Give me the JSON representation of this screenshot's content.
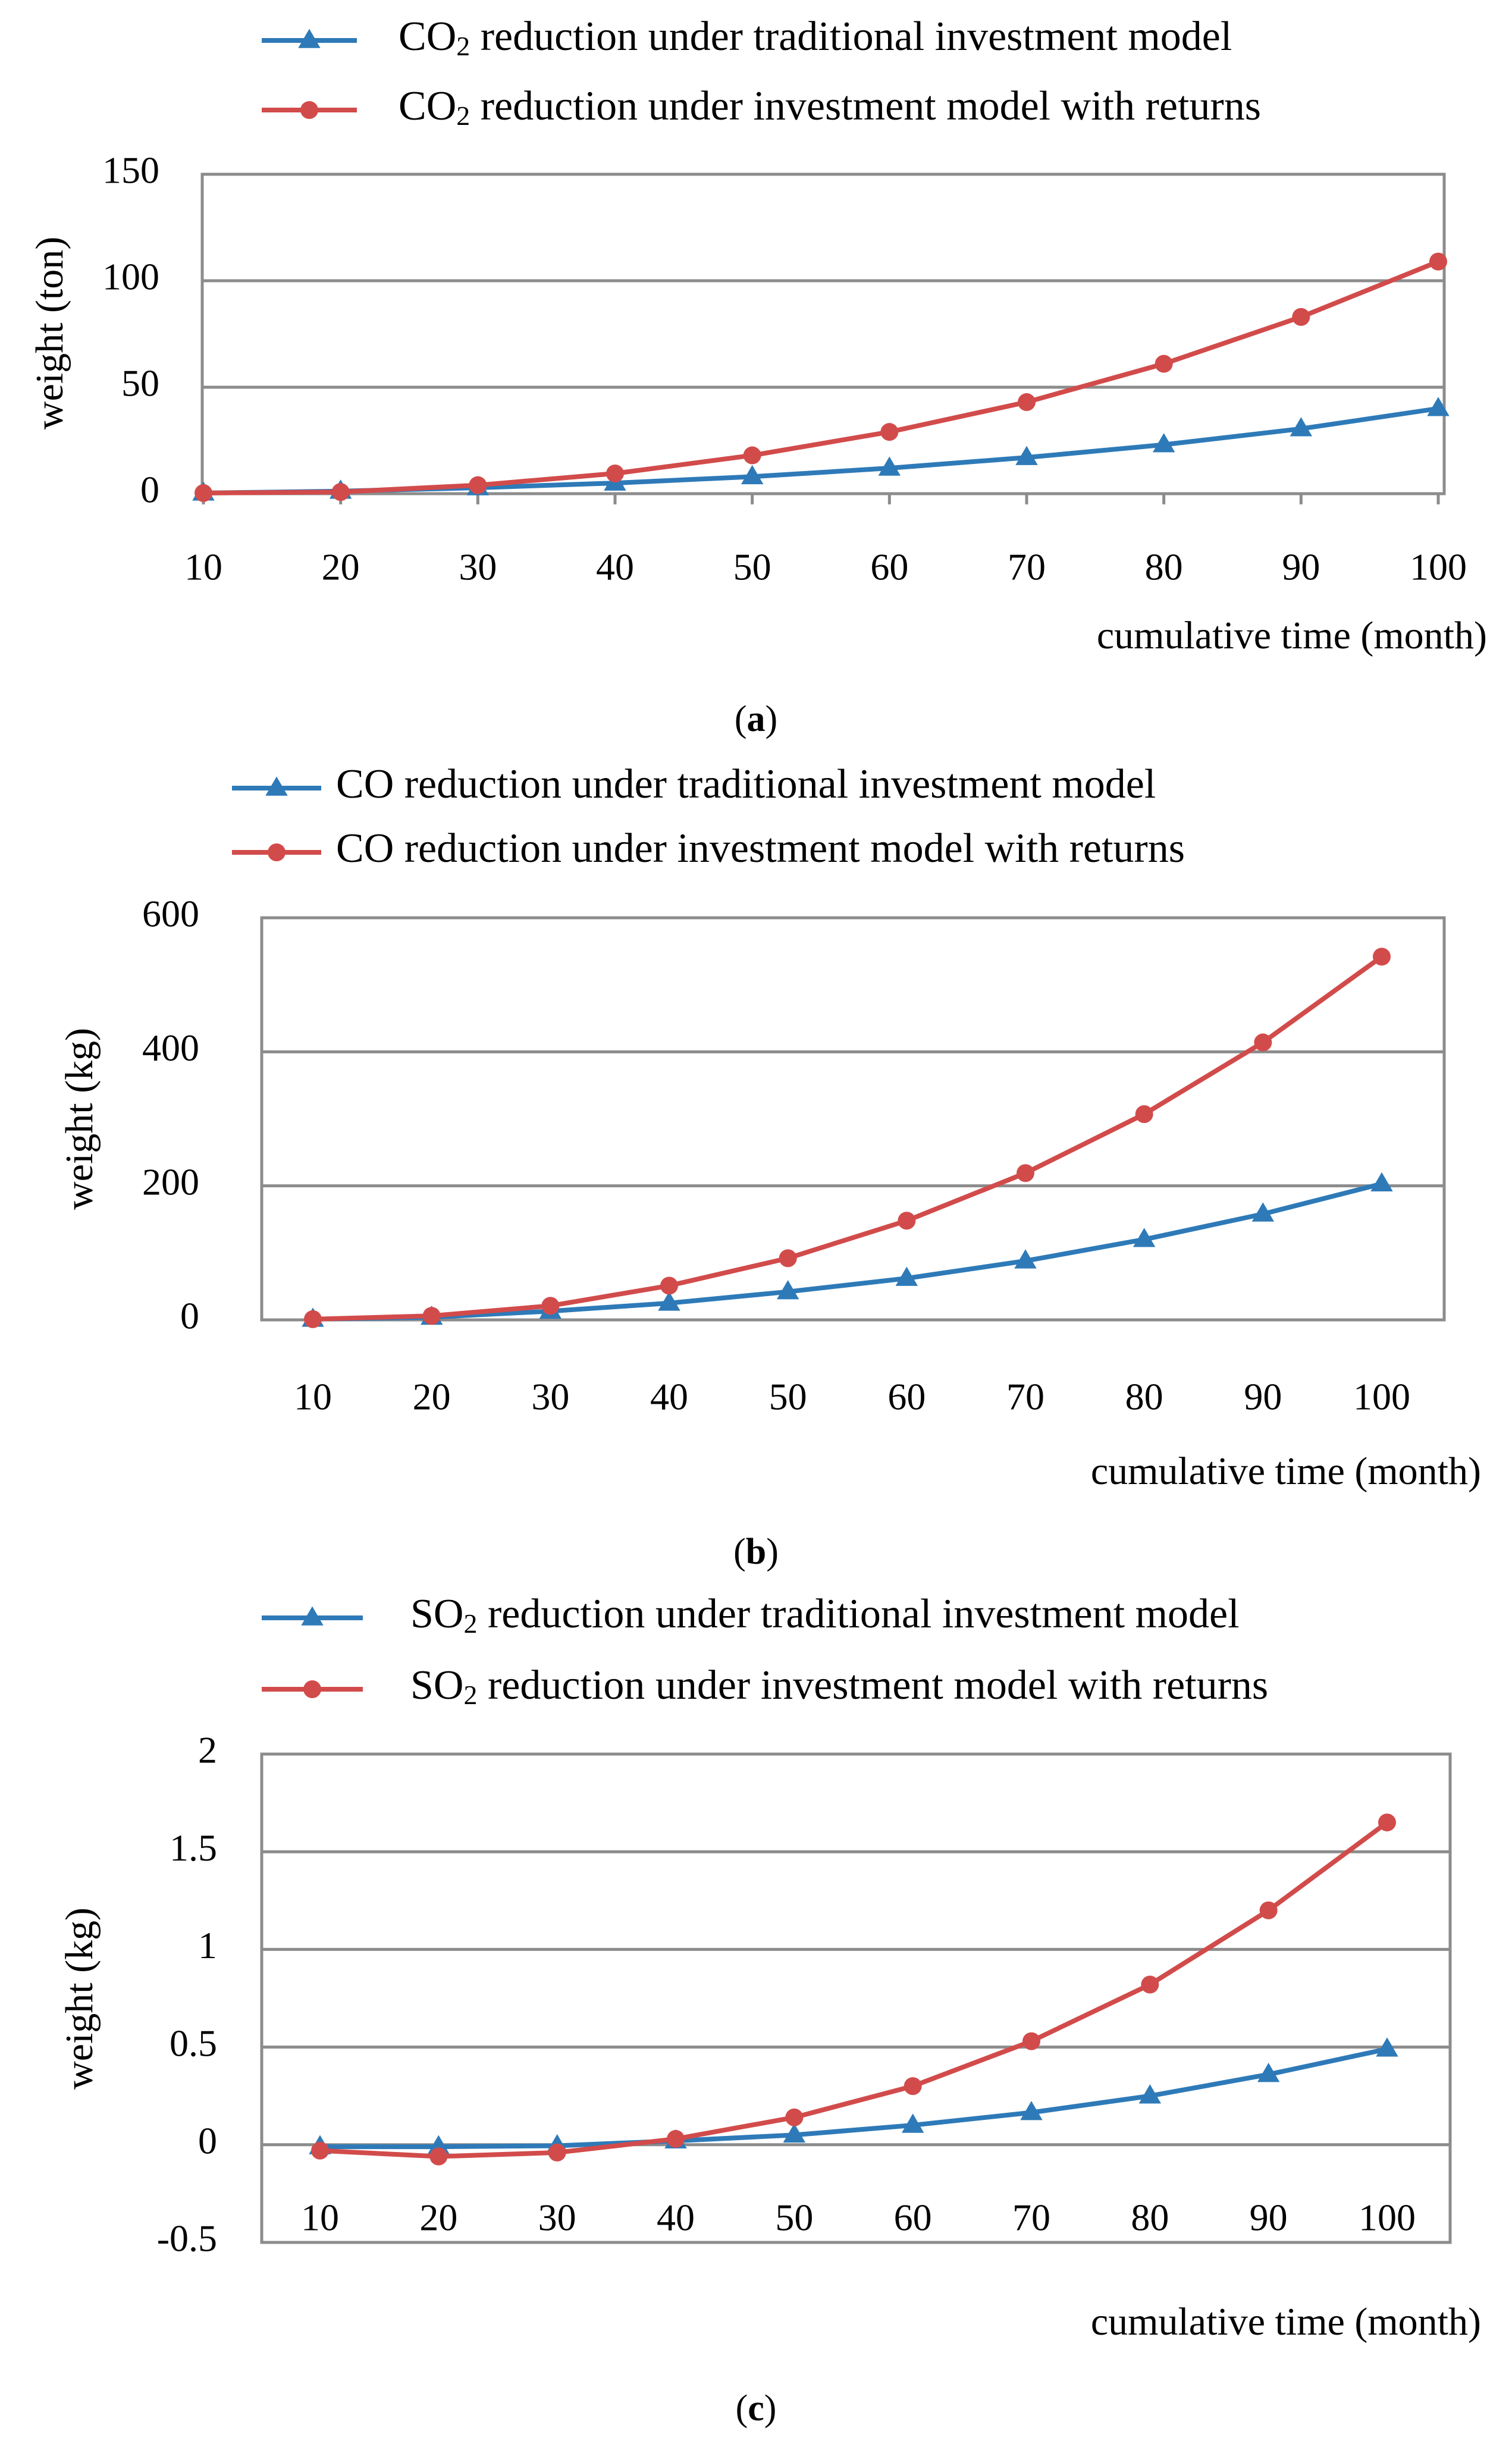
{
  "colors": {
    "traditional": "#2e7ab8",
    "returns": "#d24b4b"
  },
  "chart_data": [
    {
      "id": "a",
      "type": "line",
      "panel_label": "a",
      "x": [
        10,
        20,
        30,
        40,
        50,
        60,
        70,
        80,
        90,
        100
      ],
      "x_tick_labels": [
        "10",
        "20",
        "30",
        "40",
        "50",
        "60",
        "70",
        "80",
        "90",
        "100"
      ],
      "y_ticks": [
        0,
        50,
        100,
        150
      ],
      "y_tick_labels": [
        "0",
        "50",
        "100",
        "150"
      ],
      "ylim": [
        0,
        150
      ],
      "xlabel": "cumulative time (month)",
      "ylabel": "weight (ton)",
      "legend_position": "top",
      "series": [
        {
          "name": "traditional",
          "label_pre": "CO",
          "label_sub": "2",
          "label_post": " reduction under traditional investment model",
          "marker": "triangle",
          "values": [
            0.3,
            1.2,
            2.8,
            5.0,
            8.0,
            12.0,
            17.0,
            23.0,
            30.5,
            40.0
          ]
        },
        {
          "name": "returns",
          "label_pre": "CO",
          "label_sub": "2",
          "label_post": " reduction under investment model with returns",
          "marker": "circle",
          "values": [
            0.3,
            0.8,
            4.0,
            9.5,
            18.0,
            29.0,
            43.0,
            61.0,
            83.0,
            109.0
          ]
        }
      ]
    },
    {
      "id": "b",
      "type": "line",
      "panel_label": "b",
      "x": [
        10,
        20,
        30,
        40,
        50,
        60,
        70,
        80,
        90,
        100
      ],
      "x_tick_labels": [
        "10",
        "20",
        "30",
        "40",
        "50",
        "60",
        "70",
        "80",
        "90",
        "100"
      ],
      "y_ticks": [
        0,
        200,
        400,
        600
      ],
      "y_tick_labels": [
        "0",
        "200",
        "400",
        "600"
      ],
      "ylim": [
        0,
        600
      ],
      "xlabel": "cumulative time (month)",
      "ylabel": "weight (kg)",
      "legend_position": "top",
      "series": [
        {
          "name": "traditional",
          "label_pre": "CO",
          "label_sub": "",
          "label_post": " reduction under traditional investment model",
          "marker": "triangle",
          "values": [
            1,
            4,
            13,
            25,
            42,
            62,
            88,
            120,
            158,
            203
          ]
        },
        {
          "name": "returns",
          "label_pre": "CO",
          "label_sub": "",
          "label_post": " reduction under investment model with returns",
          "marker": "circle",
          "values": [
            1,
            6,
            21,
            51,
            92,
            148,
            219,
            307,
            414,
            542
          ]
        }
      ]
    },
    {
      "id": "c",
      "type": "line",
      "panel_label": "c",
      "x": [
        10,
        20,
        30,
        40,
        50,
        60,
        70,
        80,
        90,
        100
      ],
      "x_tick_labels": [
        "10",
        "20",
        "30",
        "40",
        "50",
        "60",
        "70",
        "80",
        "90",
        "100"
      ],
      "y_ticks": [
        -0.5,
        0,
        0.5,
        1,
        1.5,
        2
      ],
      "y_tick_labels": [
        "-0.5",
        "0",
        "0.5",
        "1",
        "1.5",
        "2"
      ],
      "ylim": [
        -0.5,
        2
      ],
      "xlabel": "cumulative time (month)",
      "ylabel": "weight (kg)",
      "legend_position": "top",
      "series": [
        {
          "name": "traditional",
          "label_pre": "SO",
          "label_sub": "2",
          "label_post": " reduction under traditional investment model",
          "marker": "triangle",
          "values": [
            -0.01,
            -0.01,
            -0.005,
            0.02,
            0.05,
            0.1,
            0.165,
            0.25,
            0.36,
            0.49
          ]
        },
        {
          "name": "returns",
          "label_pre": "SO",
          "label_sub": "2",
          "label_post": " reduction under investment model with returns",
          "marker": "circle",
          "values": [
            -0.03,
            -0.06,
            -0.04,
            0.03,
            0.14,
            0.3,
            0.53,
            0.82,
            1.2,
            1.65
          ]
        }
      ]
    }
  ]
}
